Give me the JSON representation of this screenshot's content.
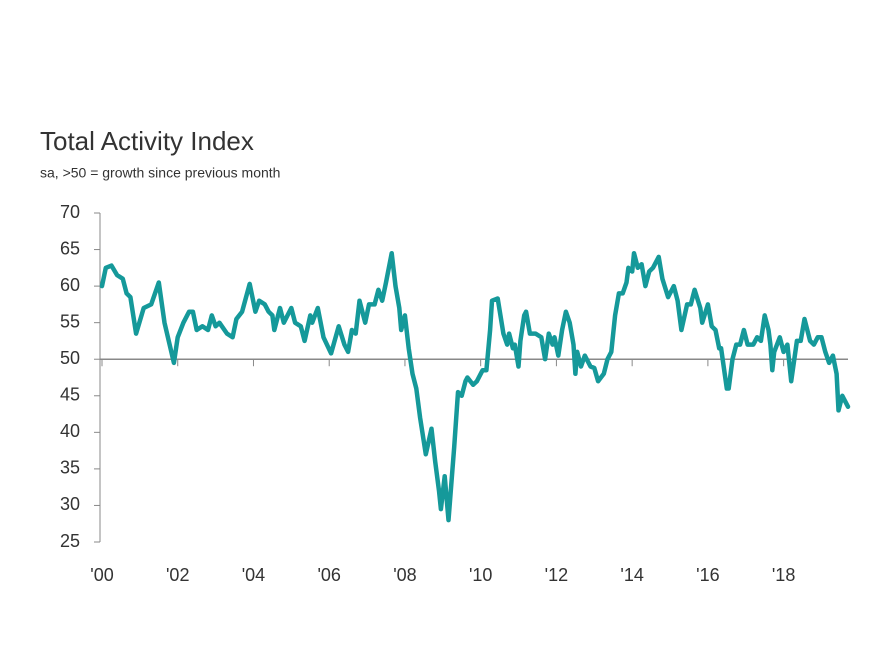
{
  "chart_data": {
    "type": "line",
    "title": "Total Activity Index",
    "subtitle": "sa, >50 = growth since previous month",
    "reference_line": 50,
    "xlim": [
      2000,
      2019.7
    ],
    "ylim": [
      25,
      70
    ],
    "yticks": [
      25,
      30,
      35,
      40,
      45,
      50,
      55,
      60,
      65,
      70
    ],
    "xticks": [
      {
        "value": 2000,
        "label": "'00"
      },
      {
        "value": 2002,
        "label": "'02"
      },
      {
        "value": 2004,
        "label": "'04"
      },
      {
        "value": 2006,
        "label": "'06"
      },
      {
        "value": 2008,
        "label": "'08"
      },
      {
        "value": 2010,
        "label": "'10"
      },
      {
        "value": 2012,
        "label": "'12"
      },
      {
        "value": 2014,
        "label": "'14"
      },
      {
        "value": 2016,
        "label": "'16"
      },
      {
        "value": 2018,
        "label": "'18"
      }
    ],
    "x": [
      2000.0,
      2000.1,
      2000.25,
      2000.4,
      2000.55,
      2000.65,
      2000.75,
      2000.9,
      2001.1,
      2001.3,
      2001.5,
      2001.65,
      2001.9,
      2002.0,
      2002.15,
      2002.3,
      2002.4,
      2002.5,
      2002.65,
      2002.8,
      2002.9,
      2003.0,
      2003.1,
      2003.3,
      2003.45,
      2003.55,
      2003.7,
      2003.9,
      2004.05,
      2004.15,
      2004.3,
      2004.4,
      2004.5,
      2004.55,
      2004.7,
      2004.8,
      2005.0,
      2005.1,
      2005.25,
      2005.35,
      2005.5,
      2005.55,
      2005.7,
      2005.85,
      2006.05,
      2006.25,
      2006.4,
      2006.5,
      2006.6,
      2006.7,
      2006.8,
      2006.95,
      2007.05,
      2007.2,
      2007.3,
      2007.4,
      2007.5,
      2007.65,
      2007.75,
      2007.85,
      2007.9,
      2008.0,
      2008.1,
      2008.2,
      2008.3,
      2008.4,
      2008.55,
      2008.7,
      2008.8,
      2008.9,
      2008.95,
      2009.05,
      2009.15,
      2009.3,
      2009.4,
      2009.5,
      2009.6,
      2009.65,
      2009.8,
      2009.9,
      2010.05,
      2010.15,
      2010.25,
      2010.3,
      2010.45,
      2010.6,
      2010.7,
      2010.75,
      2010.85,
      2010.9,
      2011.0,
      2011.05,
      2011.15,
      2011.2,
      2011.3,
      2011.45,
      2011.6,
      2011.7,
      2011.8,
      2011.9,
      2011.95,
      2012.05,
      2012.15,
      2012.25,
      2012.35,
      2012.45,
      2012.5,
      2012.55,
      2012.65,
      2012.75,
      2012.9,
      2013.0,
      2013.1,
      2013.25,
      2013.35,
      2013.45,
      2013.55,
      2013.65,
      2013.75,
      2013.85,
      2013.9,
      2014.0,
      2014.05,
      2014.15,
      2014.25,
      2014.35,
      2014.45,
      2014.55,
      2014.7,
      2014.8,
      2014.95,
      2015.1,
      2015.2,
      2015.3,
      2015.45,
      2015.55,
      2015.65,
      2015.8,
      2015.85,
      2016.0,
      2016.1,
      2016.2,
      2016.3,
      2016.35,
      2016.5,
      2016.55,
      2016.65,
      2016.75,
      2016.85,
      2016.95,
      2017.05,
      2017.2,
      2017.3,
      2017.4,
      2017.5,
      2017.6,
      2017.65,
      2017.7,
      2017.75,
      2017.9,
      2018.0,
      2018.1,
      2018.2,
      2018.35,
      2018.45,
      2018.55,
      2018.7,
      2018.8,
      2018.9,
      2019.0,
      2019.1,
      2019.2,
      2019.3,
      2019.4,
      2019.45,
      2019.55,
      2019.7
    ],
    "series": [
      {
        "name": "Total Activity Index",
        "color": "#15999a",
        "values": [
          60,
          62.5,
          62.8,
          61.5,
          61,
          59,
          58.5,
          53.5,
          57,
          57.5,
          60.5,
          55,
          49.5,
          53,
          55,
          56.5,
          56.5,
          54,
          54.5,
          54,
          56,
          54.5,
          55,
          53.5,
          53,
          55.5,
          56.5,
          60.3,
          56.5,
          58,
          57.5,
          56.5,
          56,
          54,
          57,
          55,
          57,
          55,
          54.5,
          52.5,
          56,
          55,
          57,
          53,
          50.8,
          54.5,
          52,
          51,
          54,
          53.5,
          58,
          55,
          57.5,
          57.5,
          59.5,
          58,
          60.5,
          64.5,
          60,
          57,
          54,
          56,
          51.5,
          48,
          46,
          42,
          37,
          40.5,
          36,
          32,
          29.5,
          34,
          28,
          38,
          45.5,
          45,
          47,
          47.5,
          46.5,
          47,
          48.5,
          48.5,
          54,
          58,
          58.3,
          53.5,
          52,
          53.5,
          51.5,
          52,
          49,
          52.5,
          56,
          56.5,
          53.5,
          53.5,
          53,
          50,
          53.5,
          52,
          53,
          50.5,
          54,
          56.5,
          55,
          52,
          48,
          51,
          49,
          50.5,
          49,
          48.8,
          47,
          48,
          50,
          51,
          56,
          59,
          59,
          60.5,
          62.5,
          62,
          64.5,
          62.5,
          63,
          60,
          62,
          62.5,
          64,
          61,
          58.5,
          60,
          58,
          54,
          57.5,
          57.5,
          59.5,
          57,
          55,
          57.5,
          54.5,
          54,
          51.5,
          51.5,
          46,
          46,
          50,
          52,
          52,
          54,
          52,
          52,
          53,
          52.5,
          56,
          54,
          52,
          48.5,
          51,
          53,
          51,
          52,
          47,
          52.5,
          52.5,
          55.5,
          52.5,
          52,
          53,
          53,
          51,
          49.5,
          50.5,
          48,
          43,
          45,
          43.5
        ]
      }
    ]
  }
}
